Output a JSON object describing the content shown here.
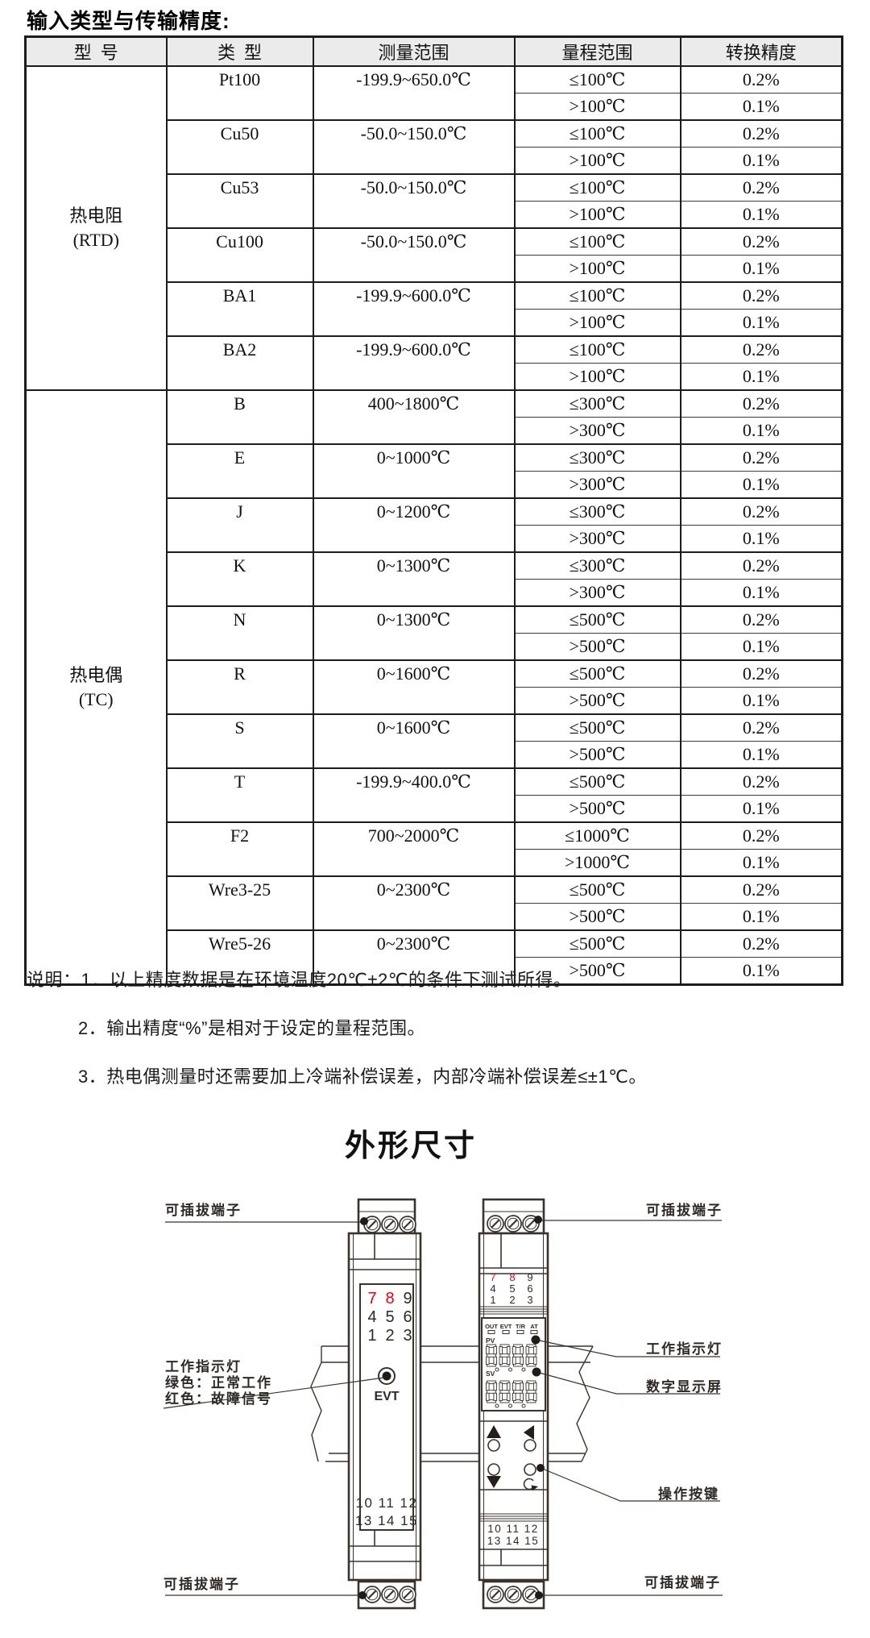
{
  "page": {
    "section1_title": "输入类型与传输精度:",
    "dimensions_title": "外形尺寸"
  },
  "table": {
    "headers": [
      "型  号",
      "类  型",
      "测量范围",
      "量程范围",
      "转换精度"
    ],
    "groups": [
      {
        "model": "热电阻\n(RTD)",
        "types": [
          {
            "type": "Pt100",
            "range": "-199.9~650.0℃",
            "spans": [
              {
                "span": "≤100℃",
                "acc": "0.2%"
              },
              {
                "span": ">100℃",
                "acc": "0.1%"
              }
            ]
          },
          {
            "type": "Cu50",
            "range": "-50.0~150.0℃",
            "spans": [
              {
                "span": "≤100℃",
                "acc": "0.2%"
              },
              {
                "span": ">100℃",
                "acc": "0.1%"
              }
            ]
          },
          {
            "type": "Cu53",
            "range": "-50.0~150.0℃",
            "spans": [
              {
                "span": "≤100℃",
                "acc": "0.2%"
              },
              {
                "span": ">100℃",
                "acc": "0.1%"
              }
            ]
          },
          {
            "type": "Cu100",
            "range": "-50.0~150.0℃",
            "spans": [
              {
                "span": "≤100℃",
                "acc": "0.2%"
              },
              {
                "span": ">100℃",
                "acc": "0.1%"
              }
            ]
          },
          {
            "type": "BA1",
            "range": "-199.9~600.0℃",
            "spans": [
              {
                "span": "≤100℃",
                "acc": "0.2%"
              },
              {
                "span": ">100℃",
                "acc": "0.1%"
              }
            ]
          },
          {
            "type": "BA2",
            "range": "-199.9~600.0℃",
            "spans": [
              {
                "span": "≤100℃",
                "acc": "0.2%"
              },
              {
                "span": ">100℃",
                "acc": "0.1%"
              }
            ]
          }
        ]
      },
      {
        "model": "热电偶\n(TC)",
        "types": [
          {
            "type": "B",
            "range": "400~1800℃",
            "spans": [
              {
                "span": "≤300℃",
                "acc": "0.2%"
              },
              {
                "span": ">300℃",
                "acc": "0.1%"
              }
            ]
          },
          {
            "type": "E",
            "range": "0~1000℃",
            "spans": [
              {
                "span": "≤300℃",
                "acc": "0.2%"
              },
              {
                "span": ">300℃",
                "acc": "0.1%"
              }
            ]
          },
          {
            "type": "J",
            "range": "0~1200℃",
            "spans": [
              {
                "span": "≤300℃",
                "acc": "0.2%"
              },
              {
                "span": ">300℃",
                "acc": "0.1%"
              }
            ]
          },
          {
            "type": "K",
            "range": "0~1300℃",
            "spans": [
              {
                "span": "≤300℃",
                "acc": "0.2%"
              },
              {
                "span": ">300℃",
                "acc": "0.1%"
              }
            ]
          },
          {
            "type": "N",
            "range": "0~1300℃",
            "spans": [
              {
                "span": "≤500℃",
                "acc": "0.2%"
              },
              {
                "span": ">500℃",
                "acc": "0.1%"
              }
            ]
          },
          {
            "type": "R",
            "range": "0~1600℃",
            "spans": [
              {
                "span": "≤500℃",
                "acc": "0.2%"
              },
              {
                "span": ">500℃",
                "acc": "0.1%"
              }
            ]
          },
          {
            "type": "S",
            "range": "0~1600℃",
            "spans": [
              {
                "span": "≤500℃",
                "acc": "0.2%"
              },
              {
                "span": ">500℃",
                "acc": "0.1%"
              }
            ]
          },
          {
            "type": "T",
            "range": "-199.9~400.0℃",
            "spans": [
              {
                "span": "≤500℃",
                "acc": "0.2%"
              },
              {
                "span": ">500℃",
                "acc": "0.1%"
              }
            ]
          },
          {
            "type": "F2",
            "range": "700~2000℃",
            "spans": [
              {
                "span": "≤1000℃",
                "acc": "0.2%"
              },
              {
                "span": ">1000℃",
                "acc": "0.1%"
              }
            ]
          },
          {
            "type": "Wre3-25",
            "range": "0~2300℃",
            "spans": [
              {
                "span": "≤500℃",
                "acc": "0.2%"
              },
              {
                "span": ">500℃",
                "acc": "0.1%"
              }
            ]
          },
          {
            "type": "Wre5-26",
            "range": "0~2300℃",
            "spans": [
              {
                "span": "≤500℃",
                "acc": "0.2%"
              },
              {
                "span": ">500℃",
                "acc": "0.1%"
              }
            ]
          }
        ]
      }
    ]
  },
  "notes": {
    "line1": "说明：1．以上精度数据是在环境温度20℃±2℃的条件下测试所得。",
    "line2": "2．输出精度“%”是相对于设定的量程范围。",
    "line3": "3．热电偶测量时还需要加上冷端补偿误差，内部冷端补偿误差≤±1℃。"
  },
  "diagram": {
    "labels": {
      "top_left_terminal": "可插拔端子",
      "top_right_terminal": "可插拔端子",
      "indicator_title_left": "工作指示灯",
      "indicator_green": "绿色：正常工作",
      "indicator_red": "红色：故障信号",
      "indicator_right": "工作指示灯",
      "display_label": "数字显示屏",
      "buttons_label": "操作按键",
      "bottom_left_terminal": "可插拔端子",
      "bottom_right_terminal": "可插拔端子"
    },
    "terminal_grid": {
      "rows": [
        [
          "7",
          "8",
          "9"
        ],
        [
          "4",
          "5",
          "6"
        ],
        [
          "1",
          "2",
          "3"
        ]
      ],
      "red": [
        "7",
        "8"
      ]
    },
    "bottom_numbers": [
      "10 11 12",
      "13 14 15"
    ],
    "left_device": {
      "indicator_label": "EVT"
    },
    "right_device": {
      "status_leds": [
        "OUT",
        "EVT",
        "T/R",
        "AT"
      ],
      "pv_label": "PV",
      "sv_label": "SV",
      "pv_digits": "8888",
      "sv_digits": "8888"
    }
  }
}
